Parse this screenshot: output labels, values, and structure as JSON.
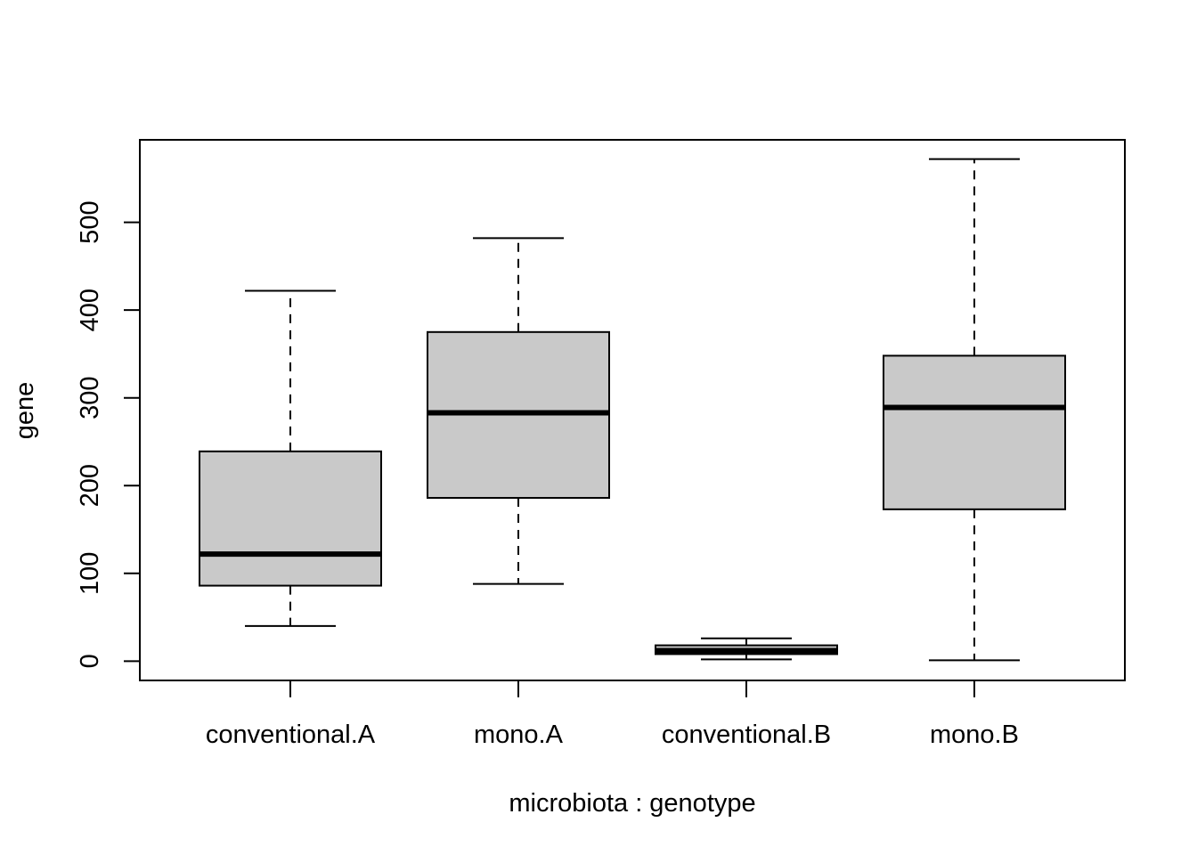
{
  "chart_data": {
    "type": "boxplot",
    "xlabel": "microbiota : genotype",
    "ylabel": "gene",
    "ylim": [
      -22,
      594
    ],
    "yticks": [
      0,
      100,
      200,
      300,
      400,
      500
    ],
    "categories": [
      "conventional.A",
      "mono.A",
      "conventional.B",
      "mono.B"
    ],
    "boxes": [
      {
        "category": "conventional.A",
        "whisker_low": 40,
        "q1": 86,
        "median": 122,
        "q3": 239,
        "whisker_high": 422
      },
      {
        "category": "mono.A",
        "whisker_low": 88,
        "q1": 186,
        "median": 283,
        "q3": 375,
        "whisker_high": 482
      },
      {
        "category": "conventional.B",
        "whisker_low": 2,
        "q1": 8,
        "median": 12,
        "q3": 18,
        "whisker_high": 26
      },
      {
        "category": "mono.B",
        "whisker_low": 1,
        "q1": 173,
        "median": 289,
        "q3": 348,
        "whisker_high": 572
      }
    ],
    "box_fill": "#c9c9c9",
    "grid": false,
    "legend": "none"
  }
}
